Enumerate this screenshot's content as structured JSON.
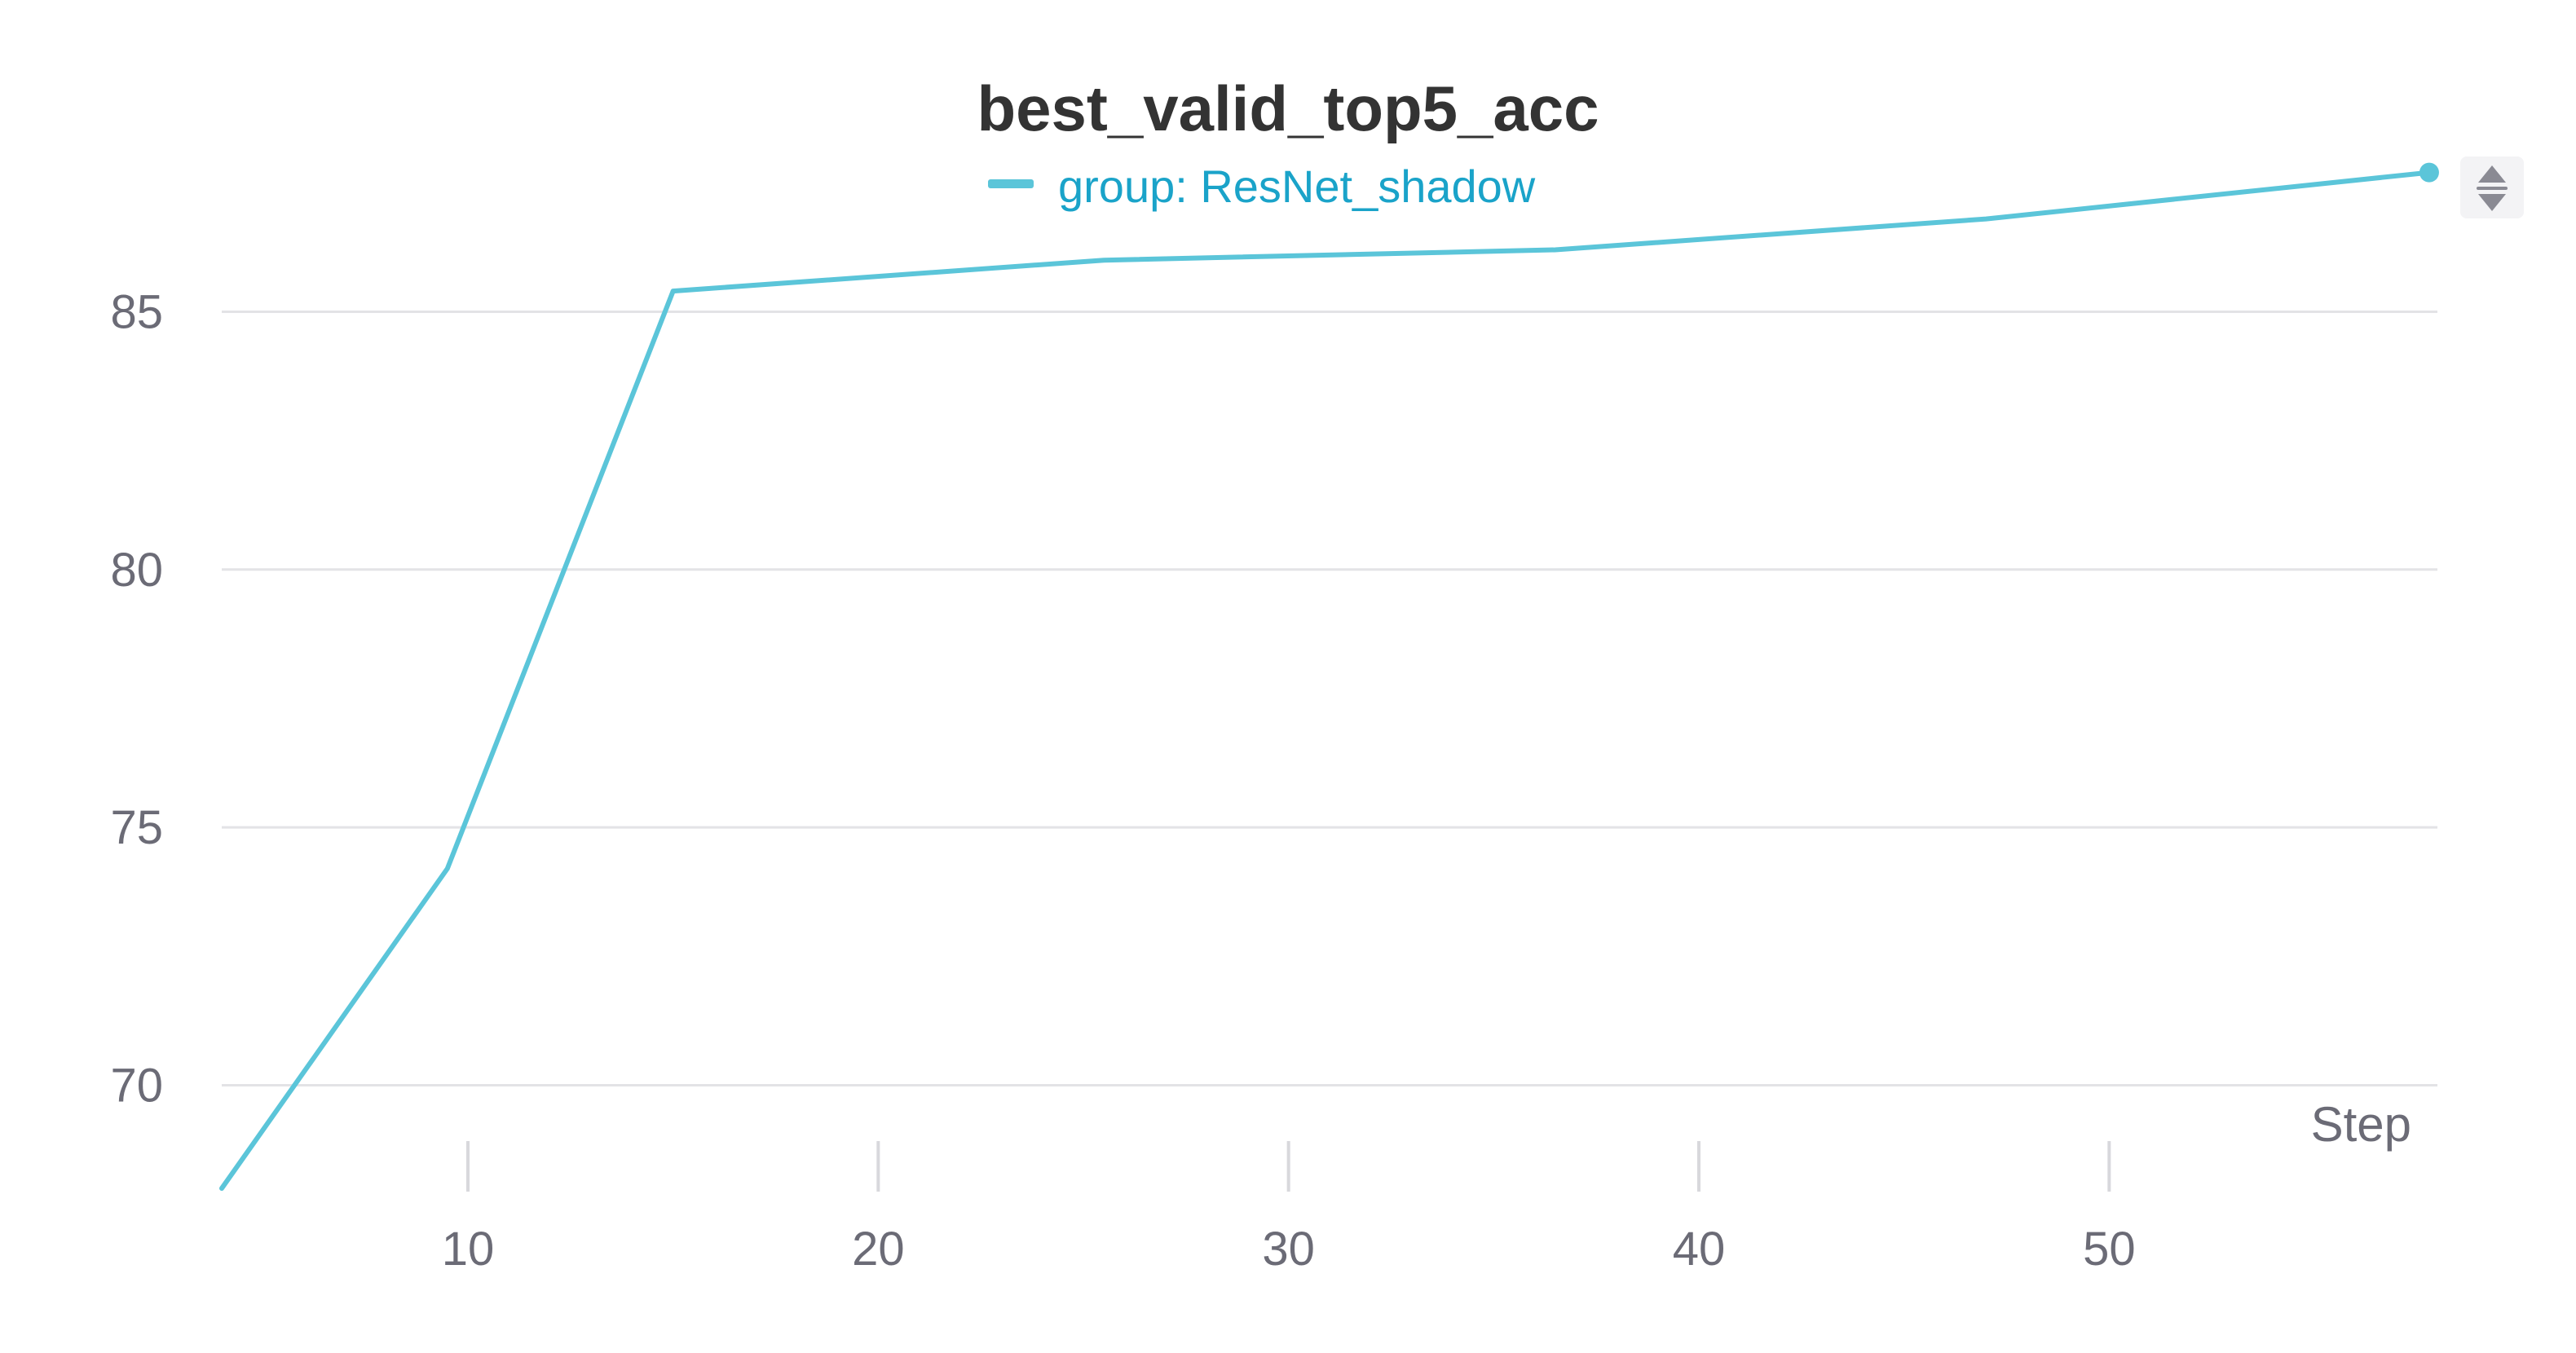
{
  "chart_data": {
    "type": "line",
    "title": "best_valid_top5_acc",
    "xlabel": "Step",
    "ylabel": "",
    "xlim": [
      4,
      58
    ],
    "ylim": [
      68,
      88.2
    ],
    "x_ticks": [
      10,
      20,
      30,
      40,
      50
    ],
    "y_ticks": [
      70,
      75,
      80,
      85
    ],
    "grid": true,
    "legend_position": "top-center",
    "series": [
      {
        "name": "group: ResNet_shadow",
        "color": "#5bc5d9",
        "x": [
          4,
          9.5,
          15,
          25.5,
          36.5,
          47,
          57.8
        ],
        "y": [
          68.0,
          74.2,
          85.4,
          86.0,
          86.2,
          86.8,
          87.7
        ]
      }
    ]
  },
  "colors": {
    "legend_text": "#1aa3c9",
    "title": "#333333",
    "tick_label": "#6b6b76"
  },
  "controls": {
    "sort_icon": "sort-up-down-icon"
  }
}
